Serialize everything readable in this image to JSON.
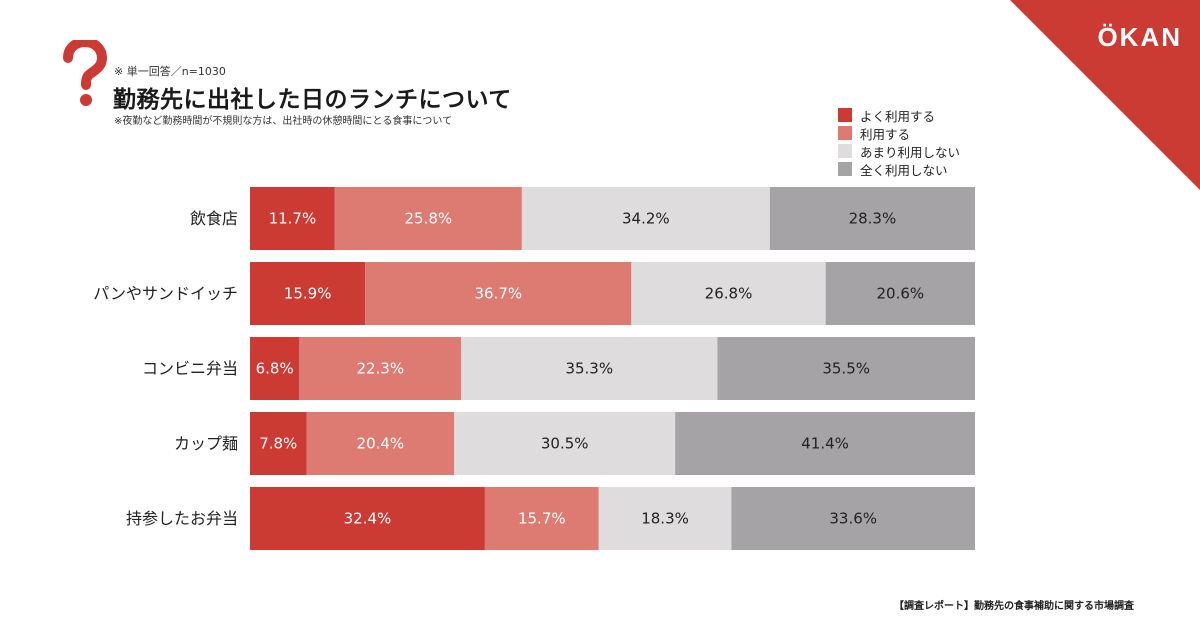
{
  "brand": {
    "logo_text": "ÖKAN",
    "accent_color": "#cc3b33"
  },
  "header": {
    "note_top": "※ 単一回答／n=1030",
    "title": "勤務先に出社した日のランチについて",
    "note_sub": "※夜勤など勤務時間が不規則な方は、出社時の休憩時間にとる食事について"
  },
  "footer": {
    "source": "【調査レポート】勤務先の食事補助に関する市場調査"
  },
  "chart_data": {
    "type": "bar",
    "orientation": "horizontal",
    "stacked": true,
    "unit": "%",
    "xlim": [
      0,
      100
    ],
    "grid": false,
    "legend_position": "top-right",
    "categories": [
      "飲食店",
      "パンやサンドイッチ",
      "コンビニ弁当",
      "カップ麺",
      "持参したお弁当"
    ],
    "series": [
      {
        "name": "よく利用する",
        "color": "#cc3b33",
        "label_color": "#ffffff",
        "values": [
          11.7,
          15.9,
          6.8,
          7.8,
          32.4
        ]
      },
      {
        "name": "利用する",
        "color": "#dd7b73",
        "label_color": "#ffffff",
        "values": [
          25.8,
          36.7,
          22.3,
          20.4,
          15.7
        ]
      },
      {
        "name": "あまり利用しない",
        "color": "#dedcdd",
        "label_color": "#222222",
        "values": [
          34.2,
          26.8,
          35.3,
          30.5,
          18.3
        ]
      },
      {
        "name": "全く利用しない",
        "color": "#a5a3a6",
        "label_color": "#222222",
        "values": [
          28.3,
          20.6,
          35.5,
          41.4,
          33.6
        ]
      }
    ]
  }
}
